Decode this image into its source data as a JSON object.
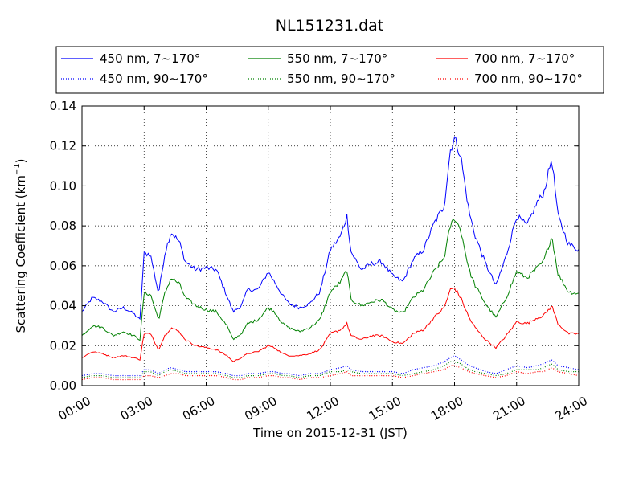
{
  "chart_data": {
    "type": "line",
    "title": "NL151231.dat",
    "xlabel": "Time on 2015-12-31 (JST)",
    "ylabel": "Scattering Coefficient (km",
    "ylabel_sup": "−1",
    "ylabel_close": ")",
    "xlim": [
      0,
      24
    ],
    "ylim": [
      0,
      0.14
    ],
    "grid": true,
    "legend_placement": "top",
    "x_ticks": [
      0,
      3,
      6,
      9,
      12,
      15,
      18,
      21,
      24
    ],
    "x_tick_labels": [
      "00:00",
      "03:00",
      "06:00",
      "09:00",
      "12:00",
      "15:00",
      "18:00",
      "21:00",
      "24:00"
    ],
    "y_ticks": [
      0,
      0.02,
      0.04,
      0.06,
      0.08,
      0.1,
      0.12,
      0.14
    ],
    "y_tick_labels": [
      "0.00",
      "0.02",
      "0.04",
      "0.06",
      "0.08",
      "0.10",
      "0.12",
      "0.14"
    ],
    "x": [
      0,
      0.5,
      1,
      1.5,
      2,
      2.5,
      2.8,
      3,
      3.3,
      3.7,
      4,
      4.3,
      4.7,
      5,
      5.5,
      6,
      6.5,
      7,
      7.3,
      7.7,
      8,
      8.5,
      9,
      9.3,
      9.7,
      10,
      10.5,
      11,
      11.5,
      12,
      12.5,
      12.8,
      13,
      13.5,
      14,
      14.5,
      15,
      15.5,
      16,
      16.5,
      17,
      17.5,
      17.8,
      18,
      18.3,
      18.7,
      19,
      19.5,
      20,
      20.5,
      21,
      21.5,
      22,
      22.3,
      22.7,
      23,
      23.5,
      24
    ],
    "series": [
      {
        "name": "450 nm, 7∼170°",
        "color": "#0000ff",
        "dash": "solid",
        "values": [
          0.037,
          0.044,
          0.042,
          0.037,
          0.039,
          0.036,
          0.033,
          0.066,
          0.066,
          0.046,
          0.066,
          0.077,
          0.072,
          0.062,
          0.058,
          0.059,
          0.058,
          0.045,
          0.037,
          0.04,
          0.048,
          0.048,
          0.057,
          0.052,
          0.045,
          0.041,
          0.039,
          0.041,
          0.047,
          0.068,
          0.075,
          0.085,
          0.067,
          0.058,
          0.061,
          0.062,
          0.055,
          0.052,
          0.063,
          0.068,
          0.081,
          0.09,
          0.118,
          0.124,
          0.115,
          0.087,
          0.075,
          0.061,
          0.05,
          0.065,
          0.085,
          0.08,
          0.092,
          0.096,
          0.114,
          0.085,
          0.071,
          0.068
        ]
      },
      {
        "name": "550 nm, 7∼170°",
        "color": "#008000",
        "dash": "solid",
        "values": [
          0.025,
          0.03,
          0.029,
          0.025,
          0.027,
          0.025,
          0.023,
          0.046,
          0.046,
          0.033,
          0.046,
          0.054,
          0.051,
          0.044,
          0.04,
          0.038,
          0.037,
          0.03,
          0.023,
          0.026,
          0.031,
          0.033,
          0.039,
          0.037,
          0.031,
          0.029,
          0.027,
          0.029,
          0.033,
          0.047,
          0.052,
          0.058,
          0.043,
          0.04,
          0.042,
          0.043,
          0.038,
          0.036,
          0.044,
          0.048,
          0.057,
          0.064,
          0.08,
          0.084,
          0.078,
          0.058,
          0.05,
          0.041,
          0.034,
          0.044,
          0.057,
          0.054,
          0.059,
          0.062,
          0.075,
          0.056,
          0.047,
          0.046
        ]
      },
      {
        "name": "700 nm, 7∼170°",
        "color": "#ff0000",
        "dash": "solid",
        "values": [
          0.014,
          0.017,
          0.016,
          0.014,
          0.015,
          0.014,
          0.013,
          0.026,
          0.026,
          0.018,
          0.025,
          0.029,
          0.027,
          0.023,
          0.02,
          0.019,
          0.018,
          0.015,
          0.012,
          0.014,
          0.016,
          0.017,
          0.02,
          0.019,
          0.016,
          0.015,
          0.015,
          0.016,
          0.018,
          0.026,
          0.028,
          0.031,
          0.025,
          0.023,
          0.025,
          0.025,
          0.022,
          0.021,
          0.026,
          0.028,
          0.034,
          0.039,
          0.048,
          0.049,
          0.044,
          0.034,
          0.029,
          0.023,
          0.019,
          0.025,
          0.032,
          0.031,
          0.034,
          0.035,
          0.04,
          0.031,
          0.026,
          0.026
        ]
      },
      {
        "name": "450 nm, 90∼170°",
        "color": "#0000ff",
        "dash": "dotted",
        "values": [
          0.005,
          0.006,
          0.006,
          0.005,
          0.005,
          0.005,
          0.005,
          0.008,
          0.008,
          0.006,
          0.008,
          0.009,
          0.008,
          0.007,
          0.007,
          0.007,
          0.007,
          0.006,
          0.005,
          0.005,
          0.006,
          0.006,
          0.007,
          0.007,
          0.006,
          0.006,
          0.005,
          0.006,
          0.006,
          0.008,
          0.009,
          0.01,
          0.008,
          0.007,
          0.007,
          0.007,
          0.007,
          0.006,
          0.008,
          0.009,
          0.01,
          0.012,
          0.014,
          0.015,
          0.013,
          0.01,
          0.009,
          0.007,
          0.006,
          0.008,
          0.01,
          0.009,
          0.01,
          0.011,
          0.013,
          0.01,
          0.009,
          0.008
        ]
      },
      {
        "name": "550 nm, 90∼170°",
        "color": "#008000",
        "dash": "dotted",
        "values": [
          0.004,
          0.005,
          0.005,
          0.004,
          0.004,
          0.004,
          0.004,
          0.007,
          0.007,
          0.005,
          0.007,
          0.008,
          0.007,
          0.006,
          0.006,
          0.006,
          0.006,
          0.005,
          0.004,
          0.004,
          0.005,
          0.005,
          0.006,
          0.006,
          0.005,
          0.005,
          0.004,
          0.005,
          0.005,
          0.007,
          0.007,
          0.008,
          0.007,
          0.006,
          0.006,
          0.006,
          0.006,
          0.005,
          0.006,
          0.007,
          0.008,
          0.01,
          0.012,
          0.012,
          0.011,
          0.008,
          0.007,
          0.006,
          0.005,
          0.006,
          0.008,
          0.008,
          0.008,
          0.009,
          0.011,
          0.008,
          0.007,
          0.007
        ]
      },
      {
        "name": "700 nm, 90∼170°",
        "color": "#ff0000",
        "dash": "dotted",
        "values": [
          0.003,
          0.004,
          0.004,
          0.003,
          0.003,
          0.003,
          0.003,
          0.005,
          0.005,
          0.004,
          0.005,
          0.006,
          0.006,
          0.005,
          0.005,
          0.005,
          0.005,
          0.004,
          0.003,
          0.003,
          0.004,
          0.004,
          0.005,
          0.005,
          0.004,
          0.004,
          0.003,
          0.004,
          0.004,
          0.005,
          0.006,
          0.007,
          0.005,
          0.005,
          0.005,
          0.005,
          0.005,
          0.004,
          0.005,
          0.006,
          0.007,
          0.008,
          0.01,
          0.01,
          0.009,
          0.007,
          0.006,
          0.005,
          0.004,
          0.005,
          0.007,
          0.006,
          0.007,
          0.007,
          0.009,
          0.007,
          0.006,
          0.005
        ]
      }
    ]
  }
}
